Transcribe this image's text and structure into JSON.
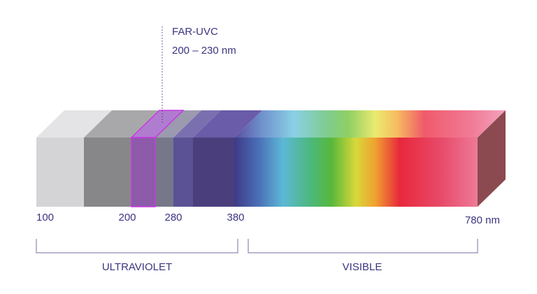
{
  "annotation": {
    "title": "FAR-UVC",
    "range": "200 – 230 nm"
  },
  "scale_labels": [
    "100",
    "200",
    "280",
    "380",
    "780 nm"
  ],
  "regions": [
    "ULTRAVIOLET",
    "VISIBLE"
  ]
}
